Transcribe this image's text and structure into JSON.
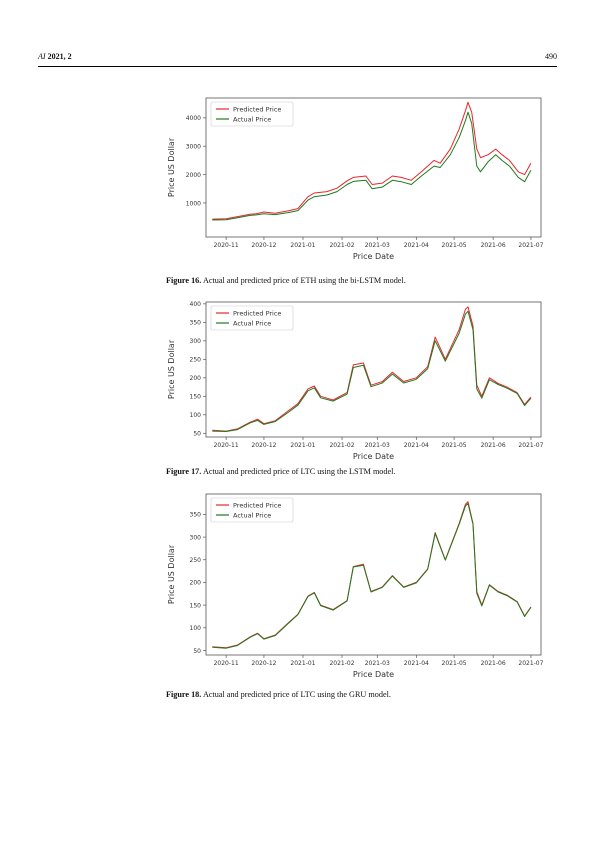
{
  "header": {
    "journal": "AI",
    "year_vol": "2021, 2",
    "page_number": "490"
  },
  "captions": [
    {
      "label": "Figure 16.",
      "text": "Actual and predicted price of ETH using the bi-LSTM model."
    },
    {
      "label": "Figure 17.",
      "text": "Actual and predicted price of LTC using the LSTM model."
    },
    {
      "label": "Figure 18.",
      "text": "Actual and predicted price of LTC using the GRU model."
    }
  ],
  "chart_data": [
    {
      "type": "line",
      "xlabel": "Price Date",
      "ylabel": "Price US Dollar",
      "x_ticks": [
        "2020-11",
        "2020-12",
        "2021-01",
        "2021-02",
        "2021-03",
        "2021-04",
        "2021-05",
        "2021-06",
        "2021-07"
      ],
      "y_ticks": [
        1000,
        2000,
        3000,
        4000
      ],
      "xlim": [
        "2020-10-16",
        "2021-07-09"
      ],
      "ylim": [
        -200,
        4700
      ],
      "legend": "top-left",
      "grid": false,
      "series": [
        {
          "name": "Predicted Price",
          "color": "#e8262a",
          "x": [
            "2020-10-21",
            "2020-11-01",
            "2020-11-10",
            "2020-11-20",
            "2020-11-25",
            "2020-12-01",
            "2020-12-10",
            "2020-12-20",
            "2020-12-28",
            "2021-01-05",
            "2021-01-10",
            "2021-01-20",
            "2021-01-28",
            "2021-02-05",
            "2021-02-10",
            "2021-02-20",
            "2021-02-25",
            "2021-03-05",
            "2021-03-13",
            "2021-03-20",
            "2021-03-28",
            "2021-04-05",
            "2021-04-15",
            "2021-04-20",
            "2021-04-28",
            "2021-05-05",
            "2021-05-10",
            "2021-05-12",
            "2021-05-15",
            "2021-05-19",
            "2021-05-22",
            "2021-05-28",
            "2021-06-03",
            "2021-06-08",
            "2021-06-14",
            "2021-06-21",
            "2021-06-26",
            "2021-07-01"
          ],
          "y": [
            430,
            440,
            520,
            600,
            620,
            680,
            640,
            720,
            800,
            1220,
            1350,
            1400,
            1520,
            1780,
            1900,
            1950,
            1650,
            1700,
            1950,
            1900,
            1800,
            2100,
            2500,
            2400,
            2900,
            3600,
            4250,
            4550,
            4200,
            2900,
            2600,
            2700,
            2900,
            2700,
            2500,
            2100,
            2000,
            2400
          ]
        },
        {
          "name": "Actual Price",
          "color": "#1f7a1f",
          "x": [
            "2020-10-21",
            "2020-11-01",
            "2020-11-10",
            "2020-11-20",
            "2020-11-25",
            "2020-12-01",
            "2020-12-10",
            "2020-12-20",
            "2020-12-28",
            "2021-01-05",
            "2021-01-10",
            "2021-01-20",
            "2021-01-28",
            "2021-02-05",
            "2021-02-10",
            "2021-02-20",
            "2021-02-25",
            "2021-03-05",
            "2021-03-13",
            "2021-03-20",
            "2021-03-28",
            "2021-04-05",
            "2021-04-15",
            "2021-04-20",
            "2021-04-28",
            "2021-05-05",
            "2021-05-10",
            "2021-05-12",
            "2021-05-15",
            "2021-05-19",
            "2021-05-22",
            "2021-05-28",
            "2021-06-03",
            "2021-06-08",
            "2021-06-14",
            "2021-06-21",
            "2021-06-26",
            "2021-07-01"
          ],
          "y": [
            400,
            410,
            480,
            560,
            580,
            620,
            590,
            660,
            730,
            1100,
            1220,
            1280,
            1400,
            1650,
            1760,
            1800,
            1500,
            1560,
            1800,
            1750,
            1650,
            1950,
            2300,
            2250,
            2700,
            3300,
            3900,
            4200,
            3800,
            2300,
            2100,
            2450,
            2700,
            2500,
            2300,
            1900,
            1750,
            2150
          ]
        }
      ]
    },
    {
      "type": "line",
      "xlabel": "Price Date",
      "ylabel": "Price US Dollar",
      "x_ticks": [
        "2020-11",
        "2020-12",
        "2021-01",
        "2021-02",
        "2021-03",
        "2021-04",
        "2021-05",
        "2021-06",
        "2021-07"
      ],
      "y_ticks": [
        50,
        100,
        150,
        200,
        250,
        300,
        350,
        400
      ],
      "xlim": [
        "2020-10-16",
        "2021-07-09"
      ],
      "ylim": [
        40,
        405
      ],
      "legend": "top-left",
      "grid": false,
      "series": [
        {
          "name": "Predicted Price",
          "color": "#e8262a",
          "x": [
            "2020-10-21",
            "2020-11-01",
            "2020-11-10",
            "2020-11-20",
            "2020-11-26",
            "2020-12-01",
            "2020-12-10",
            "2020-12-20",
            "2020-12-28",
            "2021-01-05",
            "2021-01-10",
            "2021-01-15",
            "2021-01-25",
            "2021-02-05",
            "2021-02-10",
            "2021-02-18",
            "2021-02-24",
            "2021-03-05",
            "2021-03-13",
            "2021-03-22",
            "2021-04-01",
            "2021-04-10",
            "2021-04-16",
            "2021-04-24",
            "2021-05-05",
            "2021-05-10",
            "2021-05-12",
            "2021-05-16",
            "2021-05-19",
            "2021-05-23",
            "2021-05-29",
            "2021-06-05",
            "2021-06-12",
            "2021-06-20",
            "2021-06-26",
            "2021-07-01"
          ],
          "y": [
            58,
            56,
            62,
            80,
            88,
            76,
            84,
            110,
            130,
            170,
            178,
            150,
            140,
            160,
            235,
            240,
            180,
            190,
            215,
            190,
            200,
            230,
            310,
            250,
            330,
            385,
            392,
            340,
            180,
            150,
            200,
            185,
            175,
            160,
            128,
            148
          ]
        },
        {
          "name": "Actual Price",
          "color": "#1f7a1f",
          "x": [
            "2020-10-21",
            "2020-11-01",
            "2020-11-10",
            "2020-11-20",
            "2020-11-26",
            "2020-12-01",
            "2020-12-10",
            "2020-12-20",
            "2020-12-28",
            "2021-01-05",
            "2021-01-10",
            "2021-01-15",
            "2021-01-25",
            "2021-02-05",
            "2021-02-10",
            "2021-02-18",
            "2021-02-24",
            "2021-03-05",
            "2021-03-13",
            "2021-03-22",
            "2021-04-01",
            "2021-04-10",
            "2021-04-16",
            "2021-04-24",
            "2021-05-05",
            "2021-05-10",
            "2021-05-12",
            "2021-05-16",
            "2021-05-19",
            "2021-05-23",
            "2021-05-29",
            "2021-06-05",
            "2021-06-12",
            "2021-06-20",
            "2021-06-26",
            "2021-07-01"
          ],
          "y": [
            56,
            55,
            60,
            78,
            85,
            74,
            82,
            106,
            126,
            165,
            173,
            146,
            137,
            156,
            228,
            234,
            176,
            186,
            210,
            186,
            196,
            225,
            300,
            245,
            320,
            372,
            380,
            330,
            170,
            145,
            195,
            182,
            172,
            158,
            125,
            145
          ]
        }
      ]
    },
    {
      "type": "line",
      "xlabel": "Price Date",
      "ylabel": "Price US Dollar",
      "x_ticks": [
        "2020-11",
        "2020-12",
        "2021-01",
        "2021-02",
        "2021-03",
        "2021-04",
        "2021-05",
        "2021-06",
        "2021-07"
      ],
      "y_ticks": [
        50,
        100,
        150,
        200,
        250,
        300,
        350
      ],
      "xlim": [
        "2020-10-16",
        "2021-07-09"
      ],
      "ylim": [
        40,
        395
      ],
      "legend": "top-left",
      "grid": false,
      "series": [
        {
          "name": "Predicted Price",
          "color": "#e8262a",
          "x": [
            "2020-10-21",
            "2020-11-01",
            "2020-11-10",
            "2020-11-20",
            "2020-11-26",
            "2020-12-01",
            "2020-12-10",
            "2020-12-20",
            "2020-12-28",
            "2021-01-05",
            "2021-01-10",
            "2021-01-15",
            "2021-01-25",
            "2021-02-05",
            "2021-02-10",
            "2021-02-18",
            "2021-02-24",
            "2021-03-05",
            "2021-03-13",
            "2021-03-22",
            "2021-04-01",
            "2021-04-10",
            "2021-04-16",
            "2021-04-24",
            "2021-05-05",
            "2021-05-10",
            "2021-05-12",
            "2021-05-16",
            "2021-05-19",
            "2021-05-23",
            "2021-05-29",
            "2021-06-05",
            "2021-06-12",
            "2021-06-20",
            "2021-06-26",
            "2021-07-01"
          ],
          "y": [
            58,
            56,
            62,
            80,
            88,
            76,
            84,
            110,
            130,
            170,
            178,
            150,
            140,
            160,
            235,
            240,
            180,
            190,
            215,
            190,
            200,
            230,
            310,
            250,
            330,
            372,
            378,
            330,
            180,
            150,
            195,
            180,
            172,
            158,
            126,
            146
          ]
        },
        {
          "name": "Actual Price",
          "color": "#1f7a1f",
          "x": [
            "2020-10-21",
            "2020-11-01",
            "2020-11-10",
            "2020-11-20",
            "2020-11-26",
            "2020-12-01",
            "2020-12-10",
            "2020-12-20",
            "2020-12-28",
            "2021-01-05",
            "2021-01-10",
            "2021-01-15",
            "2021-01-25",
            "2021-02-05",
            "2021-02-10",
            "2021-02-18",
            "2021-02-24",
            "2021-03-05",
            "2021-03-13",
            "2021-03-22",
            "2021-04-01",
            "2021-04-10",
            "2021-04-16",
            "2021-04-24",
            "2021-05-05",
            "2021-05-10",
            "2021-05-12",
            "2021-05-16",
            "2021-05-19",
            "2021-05-23",
            "2021-05-29",
            "2021-06-05",
            "2021-06-12",
            "2021-06-20",
            "2021-06-26",
            "2021-07-01"
          ],
          "y": [
            57,
            55,
            61,
            79,
            87,
            75,
            83,
            109,
            129,
            169,
            177,
            149,
            139,
            159,
            234,
            238,
            179,
            189,
            214,
            189,
            199,
            229,
            308,
            249,
            328,
            368,
            374,
            328,
            176,
            148,
            194,
            179,
            171,
            157,
            125,
            145
          ]
        }
      ]
    }
  ]
}
